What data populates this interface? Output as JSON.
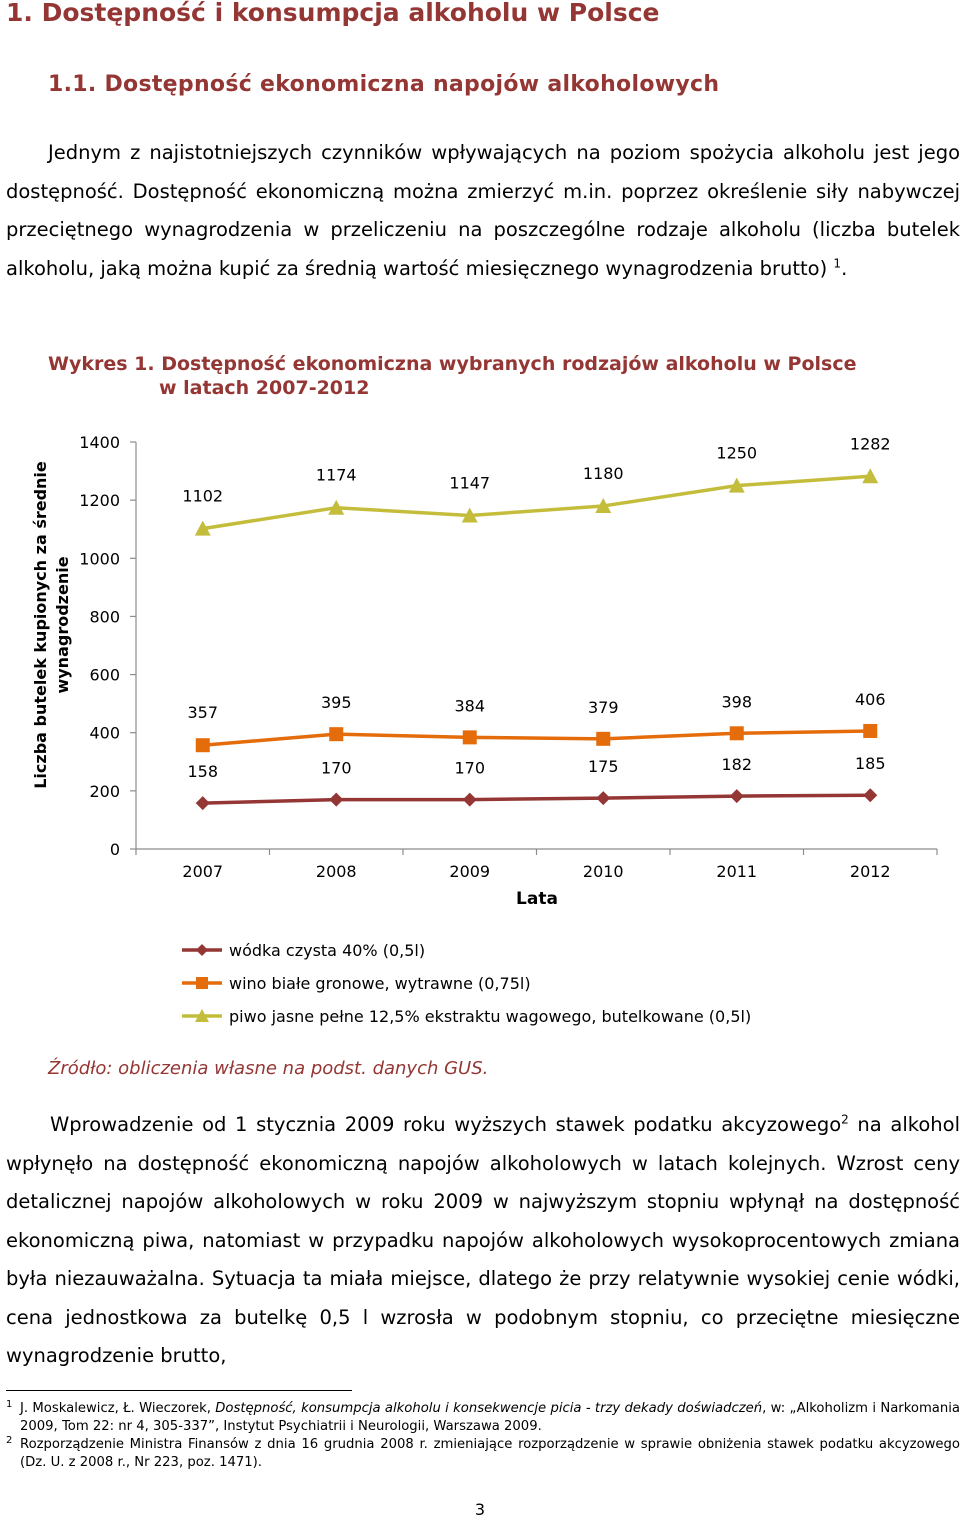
{
  "heading1": "1. Dostępność i konsumpcja alkoholu w Polsce",
  "heading2": "1.1. Dostępność ekonomiczna napojów alkoholowych",
  "paragraph1": {
    "text": "Jednym z najistotniejszych czynników wpływających na poziom spożycia alkoholu jest jego dostępność. Dostępność ekonomiczną można zmierzyć m.in. poprzez określenie siły nabywczej przeciętnego wynagrodzenia w przeliczeniu na poszczególne rodzaje alkoholu (liczba butelek alkoholu, jaką można kupić za średnią wartość miesięcznego wynagrodzenia brutto)",
    "footnote_ref": "1",
    "end": "."
  },
  "figure": {
    "caption_line1": "Wykres 1. Dostępność ekonomiczna wybranych rodzajów alkoholu w Polsce",
    "caption_line2": "w latach 2007-2012",
    "source": "Źródło: obliczenia własne na podst. danych GUS."
  },
  "chart_data": {
    "type": "line",
    "title": "",
    "xlabel": "Lata",
    "ylabel_line1": "Liczba butelek kupionych za średnie",
    "ylabel_line2": "wynagrodzenie",
    "x": [
      "2007",
      "2008",
      "2009",
      "2010",
      "2011",
      "2012"
    ],
    "ylim": [
      0,
      1400
    ],
    "yticks": [
      "0",
      "200",
      "400",
      "600",
      "800",
      "1000",
      "1200",
      "1400"
    ],
    "grid": false,
    "legend_position": "bottom",
    "series": [
      {
        "name": "wódka czysta 40% (0,5l)",
        "values": [
          158,
          170,
          170,
          175,
          182,
          185
        ],
        "color": "#943634",
        "marker": "diamond"
      },
      {
        "name": "wino białe gronowe, wytrawne (0,75l)",
        "values": [
          357,
          395,
          384,
          379,
          398,
          406
        ],
        "color": "#E46C0A",
        "marker": "square"
      },
      {
        "name": "piwo jasne pełne 12,5% ekstraktu wagowego, butelkowane (0,5l)",
        "values": [
          1102,
          1174,
          1147,
          1180,
          1250,
          1282
        ],
        "color": "#C4BD3C",
        "marker": "triangle"
      }
    ]
  },
  "paragraph2": {
    "part1": "Wprowadzenie od 1 stycznia 2009 roku wyższych stawek podatku akcyzowego",
    "footnote_ref": "2",
    "part2": " na alkohol wpłynęło na dostępność ekonomiczną napojów alkoholowych w latach kolejnych. Wzrost ceny detalicznej napojów alkoholowych w roku 2009 w najwyższym stopniu wpłynął na dostępność ekonomiczną piwa, natomiast w przypadku napojów alkoholowych wysokoprocentowych zmiana była niezauważalna. Sytuacja ta miała miejsce, dlatego że przy relatywnie wysokiej cenie wódki, cena jednostkowa za butelkę 0,5 l wzrosła w podobnym stopniu, co przeciętne miesięczne wynagrodzenie brutto,"
  },
  "footnotes": [
    {
      "num": "1",
      "pre": "J. Moskalewicz, Ł. Wieczorek, ",
      "italic": "Dostępność, konsumpcja alkoholu i konsekwencje picia - trzy dekady doświadczeń",
      "post": ", w: „Alkoholizm i Narkomania 2009, Tom 22: nr 4, 305-337”, Instytut Psychiatrii i Neurologii, Warszawa 2009."
    },
    {
      "num": "2",
      "pre": "Rozporządzenie Ministra Finansów z dnia 16 grudnia 2008 r. zmieniające rozporządzenie w sprawie obniżenia stawek podatku akcyzowego (Dz. U. z 2008 r., Nr 223, poz. 1471).",
      "italic": "",
      "post": ""
    }
  ],
  "page_number": "3",
  "colors": {
    "heading": "#943634",
    "axis": "#8c8c8c"
  }
}
